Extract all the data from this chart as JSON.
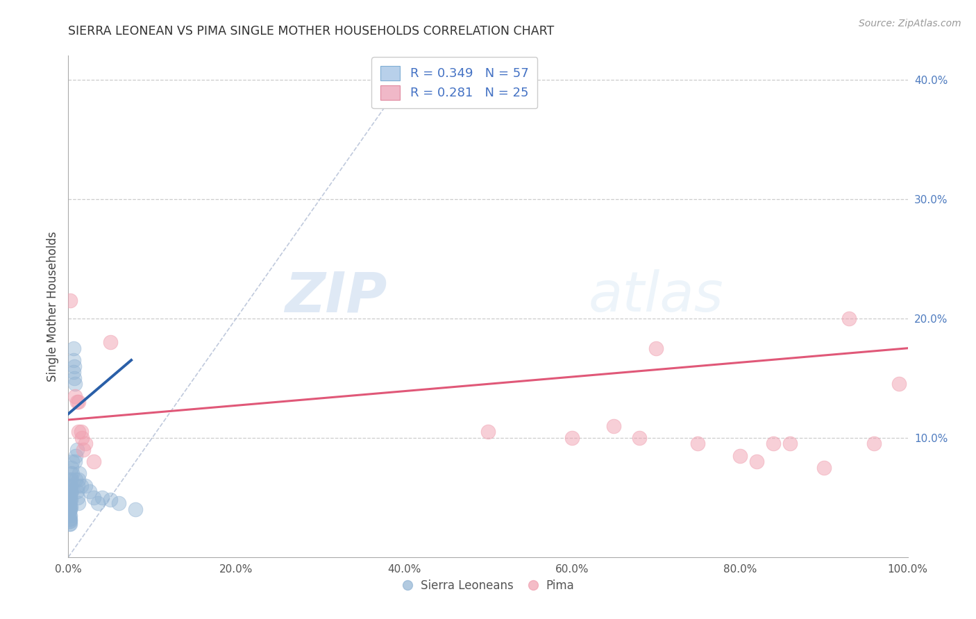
{
  "title": "SIERRA LEONEAN VS PIMA SINGLE MOTHER HOUSEHOLDS CORRELATION CHART",
  "source": "Source: ZipAtlas.com",
  "ylabel": "Single Mother Households",
  "xlim": [
    0,
    1.0
  ],
  "ylim": [
    0,
    0.42
  ],
  "xticks": [
    0.0,
    0.2,
    0.4,
    0.6,
    0.8,
    1.0
  ],
  "xticklabels": [
    "0.0%",
    "20.0%",
    "40.0%",
    "60.0%",
    "80.0%",
    "100.0%"
  ],
  "yticks": [
    0.1,
    0.2,
    0.3,
    0.4
  ],
  "yticklabels": [
    "10.0%",
    "20.0%",
    "30.0%",
    "40.0%"
  ],
  "legend_labels": [
    "Sierra Leoneans",
    "Pima"
  ],
  "blue_R": "0.349",
  "blue_N": "57",
  "pink_R": "0.281",
  "pink_N": "25",
  "blue_color": "#92b4d4",
  "pink_color": "#f0a0b0",
  "blue_scatter": [
    [
      0.001,
      0.055
    ],
    [
      0.001,
      0.05
    ],
    [
      0.001,
      0.048
    ],
    [
      0.001,
      0.045
    ],
    [
      0.001,
      0.042
    ],
    [
      0.001,
      0.04
    ],
    [
      0.001,
      0.038
    ],
    [
      0.001,
      0.035
    ],
    [
      0.001,
      0.032
    ],
    [
      0.001,
      0.03
    ],
    [
      0.001,
      0.028
    ],
    [
      0.001,
      0.06
    ],
    [
      0.002,
      0.065
    ],
    [
      0.002,
      0.058
    ],
    [
      0.002,
      0.052
    ],
    [
      0.002,
      0.048
    ],
    [
      0.002,
      0.043
    ],
    [
      0.002,
      0.04
    ],
    [
      0.002,
      0.035
    ],
    [
      0.002,
      0.032
    ],
    [
      0.002,
      0.03
    ],
    [
      0.002,
      0.028
    ],
    [
      0.003,
      0.07
    ],
    [
      0.003,
      0.06
    ],
    [
      0.003,
      0.055
    ],
    [
      0.003,
      0.048
    ],
    [
      0.003,
      0.042
    ],
    [
      0.004,
      0.075
    ],
    [
      0.004,
      0.065
    ],
    [
      0.004,
      0.055
    ],
    [
      0.005,
      0.08
    ],
    [
      0.005,
      0.07
    ],
    [
      0.006,
      0.175
    ],
    [
      0.006,
      0.165
    ],
    [
      0.006,
      0.155
    ],
    [
      0.007,
      0.16
    ],
    [
      0.007,
      0.15
    ],
    [
      0.008,
      0.145
    ],
    [
      0.008,
      0.08
    ],
    [
      0.009,
      0.085
    ],
    [
      0.009,
      0.065
    ],
    [
      0.01,
      0.09
    ],
    [
      0.01,
      0.055
    ],
    [
      0.011,
      0.06
    ],
    [
      0.011,
      0.05
    ],
    [
      0.012,
      0.065
    ],
    [
      0.012,
      0.045
    ],
    [
      0.013,
      0.07
    ],
    [
      0.015,
      0.06
    ],
    [
      0.02,
      0.06
    ],
    [
      0.025,
      0.055
    ],
    [
      0.03,
      0.05
    ],
    [
      0.035,
      0.045
    ],
    [
      0.04,
      0.05
    ],
    [
      0.05,
      0.048
    ],
    [
      0.06,
      0.045
    ],
    [
      0.08,
      0.04
    ]
  ],
  "pink_scatter": [
    [
      0.002,
      0.215
    ],
    [
      0.008,
      0.135
    ],
    [
      0.01,
      0.13
    ],
    [
      0.012,
      0.13
    ],
    [
      0.012,
      0.105
    ],
    [
      0.015,
      0.105
    ],
    [
      0.016,
      0.1
    ],
    [
      0.018,
      0.09
    ],
    [
      0.02,
      0.095
    ],
    [
      0.03,
      0.08
    ],
    [
      0.05,
      0.18
    ],
    [
      0.5,
      0.105
    ],
    [
      0.6,
      0.1
    ],
    [
      0.65,
      0.11
    ],
    [
      0.68,
      0.1
    ],
    [
      0.7,
      0.175
    ],
    [
      0.75,
      0.095
    ],
    [
      0.8,
      0.085
    ],
    [
      0.82,
      0.08
    ],
    [
      0.84,
      0.095
    ],
    [
      0.86,
      0.095
    ],
    [
      0.9,
      0.075
    ],
    [
      0.93,
      0.2
    ],
    [
      0.96,
      0.095
    ],
    [
      0.99,
      0.145
    ]
  ],
  "blue_line_x": [
    0.0,
    0.075
  ],
  "blue_line_y": [
    0.12,
    0.165
  ],
  "pink_line_x": [
    0.0,
    1.0
  ],
  "pink_line_y": [
    0.115,
    0.175
  ],
  "diag_line_x": [
    0.0,
    0.42
  ],
  "diag_line_y": [
    0.0,
    0.42
  ],
  "background_color": "#ffffff",
  "grid_color": "#cccccc"
}
